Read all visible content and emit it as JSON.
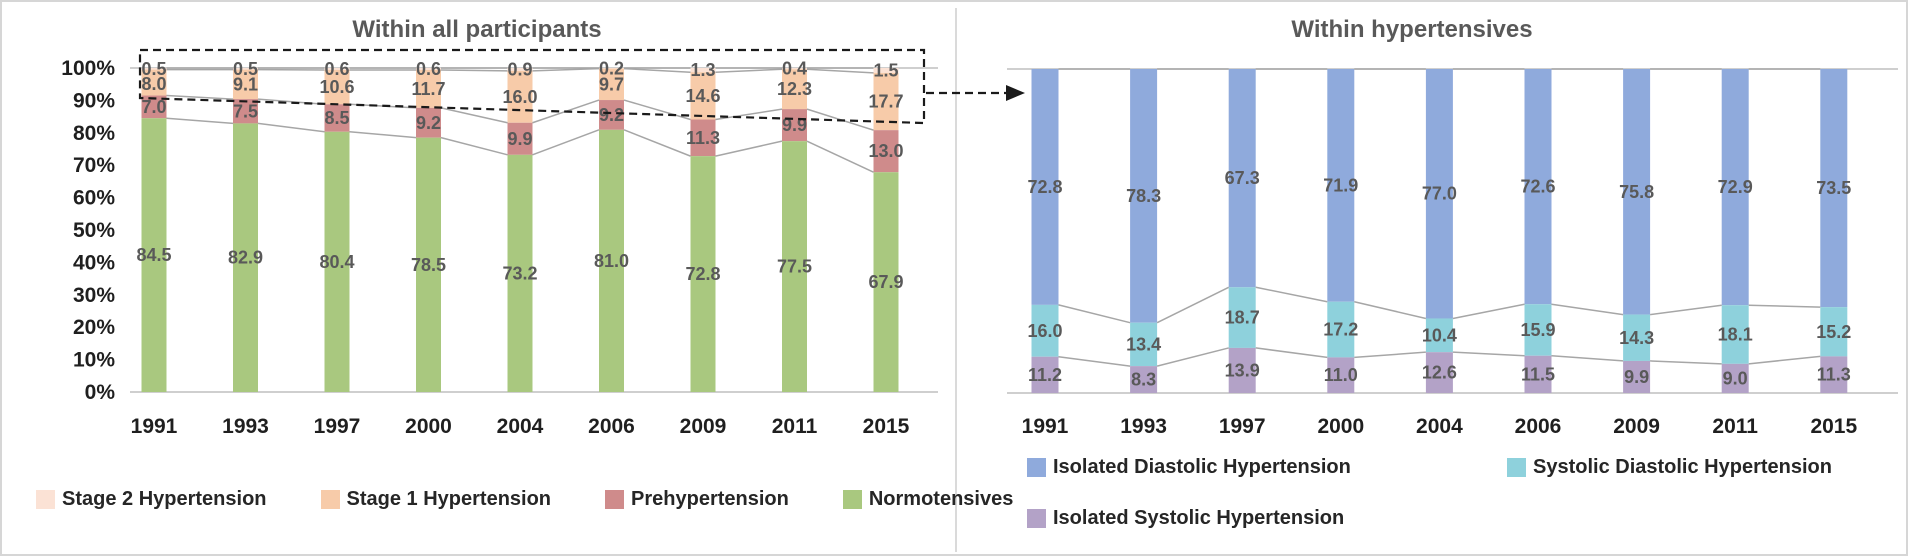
{
  "figure": {
    "type": "dual 100% stacked column charts",
    "border_color": "#d6d6d6",
    "divider_color": "#dadada",
    "annotations": {
      "dashed_highlight_box": "dashed rectangle around the hypertensive (non-normotensive) top segments of the left chart",
      "dashed_arrow": "dashed arrow pointing from the highlight box to the right chart"
    }
  },
  "chart_data": [
    {
      "type": "bar",
      "subtype": "stacked-100-percent",
      "title": "Within all participants",
      "categories": [
        "1991",
        "1993",
        "1997",
        "2000",
        "2004",
        "2006",
        "2009",
        "2011",
        "2015"
      ],
      "series": [
        {
          "name": "Stage 2 Hypertension",
          "color": "#fbe2d5",
          "values": [
            0.5,
            0.5,
            0.6,
            0.6,
            0.9,
            0.2,
            1.3,
            0.4,
            1.5
          ]
        },
        {
          "name": "Stage 1 Hypertension",
          "color": "#f7cba9",
          "values": [
            8.0,
            9.1,
            10.6,
            11.7,
            16.0,
            9.7,
            14.6,
            12.3,
            17.7
          ]
        },
        {
          "name": "Prehypertension",
          "color": "#cf8b8b",
          "values": [
            7.0,
            7.5,
            8.5,
            9.2,
            9.9,
            9.2,
            11.3,
            9.9,
            13.0
          ]
        },
        {
          "name": "Normotensives",
          "color": "#a9c87f",
          "values": [
            84.5,
            82.9,
            80.4,
            78.5,
            73.2,
            81.0,
            72.8,
            77.5,
            67.9
          ]
        }
      ],
      "stack_order_top_to_bottom": [
        "Stage 2 Hypertension",
        "Stage 1 Hypertension",
        "Prehypertension",
        "Normotensives"
      ],
      "xlabel": "",
      "ylabel": "",
      "ylim": [
        0,
        100
      ],
      "y_tick_labels": [
        "0%",
        "10%",
        "20%",
        "30%",
        "40%",
        "50%",
        "60%",
        "70%",
        "80%",
        "90%",
        "100%"
      ],
      "gridlines": "100% line and baseline only",
      "series_connector_lines": true,
      "data_labels": "each segment labeled with its percentage",
      "legend_position": "bottom"
    },
    {
      "type": "bar",
      "subtype": "stacked-100-percent",
      "title": "Within hypertensives",
      "categories": [
        "1991",
        "1993",
        "1997",
        "2000",
        "2004",
        "2006",
        "2009",
        "2011",
        "2015"
      ],
      "series": [
        {
          "name": "Isolated Diastolic Hypertension",
          "color": "#8faadc",
          "values": [
            72.8,
            78.3,
            67.3,
            71.9,
            77.0,
            72.6,
            75.8,
            72.9,
            73.5
          ]
        },
        {
          "name": "Systolic Diastolic Hypertension",
          "color": "#8ed1dc",
          "values": [
            16.0,
            13.4,
            18.7,
            17.2,
            10.4,
            15.9,
            14.3,
            18.1,
            15.2
          ]
        },
        {
          "name": "Isolated Systolic Hypertension",
          "color": "#b3a2c7",
          "values": [
            11.2,
            8.3,
            13.9,
            11.0,
            12.6,
            11.5,
            9.9,
            9.0,
            11.3
          ]
        }
      ],
      "stack_order_top_to_bottom": [
        "Isolated Diastolic Hypertension",
        "Systolic Diastolic Hypertension",
        "Isolated Systolic Hypertension"
      ],
      "xlabel": "",
      "ylabel": "",
      "ylim": [
        0,
        100
      ],
      "y_tick_labels": [],
      "gridlines": "100% line and baseline only",
      "series_connector_lines": true,
      "data_labels": "each segment labeled with its percentage",
      "legend_position": "bottom"
    }
  ],
  "style": {
    "value_label_color": "#595959",
    "axis_label_color": "#1f1f1f",
    "connector_line_color": "#a6a6a6",
    "gridline_color": "#bfbfbf",
    "annotation_color": "#1a1a1a",
    "title_color": "#595959"
  }
}
